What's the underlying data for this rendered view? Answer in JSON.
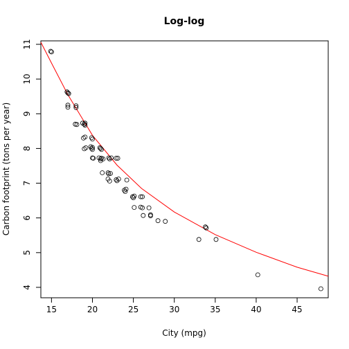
{
  "chart_data": {
    "type": "scatter",
    "title": "Log-log",
    "xlabel": "City (mpg)",
    "ylabel": "Carbon footprint (tons per year)",
    "xlim": [
      13.7,
      48.8
    ],
    "ylim": [
      3.7,
      11.1
    ],
    "xticks": [
      15,
      20,
      25,
      30,
      35,
      40,
      45
    ],
    "yticks": [
      4,
      5,
      6,
      7,
      8,
      9,
      10,
      11
    ],
    "grid": false,
    "legend": "none",
    "point_color": "#000000",
    "fit_color": "#ff0000",
    "fit_line": {
      "x": [
        13.7,
        15,
        17,
        20,
        23,
        26,
        30,
        35,
        40,
        45,
        48.8
      ],
      "y": [
        11.06,
        10.46,
        9.55,
        8.38,
        7.52,
        6.85,
        6.17,
        5.52,
        5.01,
        4.58,
        4.32
      ]
    },
    "points": [
      {
        "x": 14.9,
        "y": 10.8
      },
      {
        "x": 15.0,
        "y": 10.78
      },
      {
        "x": 16.9,
        "y": 9.63
      },
      {
        "x": 17.0,
        "y": 9.6
      },
      {
        "x": 17.1,
        "y": 9.58
      },
      {
        "x": 17.0,
        "y": 9.25
      },
      {
        "x": 17.0,
        "y": 9.19
      },
      {
        "x": 18.0,
        "y": 9.23
      },
      {
        "x": 18.0,
        "y": 9.18
      },
      {
        "x": 17.9,
        "y": 8.7
      },
      {
        "x": 18.1,
        "y": 8.69
      },
      {
        "x": 18.8,
        "y": 8.73
      },
      {
        "x": 19.0,
        "y": 8.7
      },
      {
        "x": 19.1,
        "y": 8.73
      },
      {
        "x": 19.1,
        "y": 8.67
      },
      {
        "x": 18.9,
        "y": 8.3
      },
      {
        "x": 19.1,
        "y": 8.33
      },
      {
        "x": 19.9,
        "y": 8.31
      },
      {
        "x": 20.0,
        "y": 8.27
      },
      {
        "x": 19.8,
        "y": 8.05
      },
      {
        "x": 19.9,
        "y": 8.0
      },
      {
        "x": 20.0,
        "y": 8.03
      },
      {
        "x": 20.0,
        "y": 7.97
      },
      {
        "x": 19.0,
        "y": 7.99
      },
      {
        "x": 19.2,
        "y": 8.02
      },
      {
        "x": 20.9,
        "y": 8.02
      },
      {
        "x": 21.0,
        "y": 8.0
      },
      {
        "x": 21.1,
        "y": 7.97
      },
      {
        "x": 20.0,
        "y": 7.73
      },
      {
        "x": 20.1,
        "y": 7.72
      },
      {
        "x": 20.8,
        "y": 7.73
      },
      {
        "x": 21.0,
        "y": 7.7
      },
      {
        "x": 21.1,
        "y": 7.72
      },
      {
        "x": 21.3,
        "y": 7.7
      },
      {
        "x": 22.0,
        "y": 7.73
      },
      {
        "x": 22.1,
        "y": 7.7
      },
      {
        "x": 22.3,
        "y": 7.73
      },
      {
        "x": 22.9,
        "y": 7.72
      },
      {
        "x": 23.1,
        "y": 7.72
      },
      {
        "x": 21.0,
        "y": 7.65
      },
      {
        "x": 21.2,
        "y": 7.3
      },
      {
        "x": 21.9,
        "y": 7.3
      },
      {
        "x": 22.0,
        "y": 7.27
      },
      {
        "x": 22.2,
        "y": 7.28
      },
      {
        "x": 21.9,
        "y": 7.12
      },
      {
        "x": 22.1,
        "y": 7.06
      },
      {
        "x": 22.9,
        "y": 7.1
      },
      {
        "x": 23.0,
        "y": 7.07
      },
      {
        "x": 23.2,
        "y": 7.12
      },
      {
        "x": 24.2,
        "y": 7.09
      },
      {
        "x": 23.9,
        "y": 6.8
      },
      {
        "x": 24.0,
        "y": 6.76
      },
      {
        "x": 24.1,
        "y": 6.83
      },
      {
        "x": 24.9,
        "y": 6.61
      },
      {
        "x": 25.0,
        "y": 6.58
      },
      {
        "x": 25.1,
        "y": 6.63
      },
      {
        "x": 25.9,
        "y": 6.61
      },
      {
        "x": 26.1,
        "y": 6.61
      },
      {
        "x": 25.1,
        "y": 6.3
      },
      {
        "x": 25.9,
        "y": 6.31
      },
      {
        "x": 26.1,
        "y": 6.29
      },
      {
        "x": 26.9,
        "y": 6.29
      },
      {
        "x": 26.2,
        "y": 6.07
      },
      {
        "x": 27.1,
        "y": 6.09
      },
      {
        "x": 27.1,
        "y": 6.06
      },
      {
        "x": 28.0,
        "y": 5.92
      },
      {
        "x": 28.9,
        "y": 5.9
      },
      {
        "x": 33.8,
        "y": 5.74
      },
      {
        "x": 33.9,
        "y": 5.71
      },
      {
        "x": 33.0,
        "y": 5.38
      },
      {
        "x": 35.1,
        "y": 5.38
      },
      {
        "x": 40.2,
        "y": 4.36
      },
      {
        "x": 47.9,
        "y": 3.96
      }
    ]
  }
}
